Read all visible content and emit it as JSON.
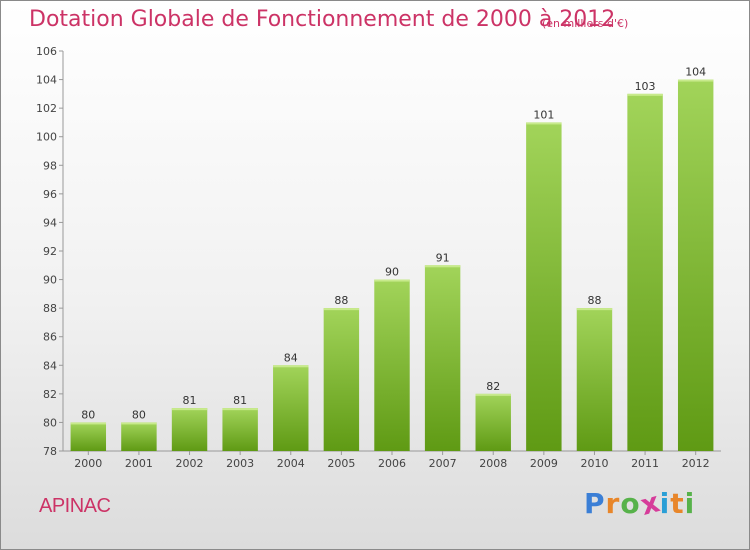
{
  "header": {
    "title": "Dotation Globale de Fonctionnement de 2000 à 2012",
    "unit": "(en milliers d'€)"
  },
  "footer": {
    "commune": "APINAC",
    "logo_letters": [
      "P",
      "r",
      "o",
      "x",
      "i",
      "t",
      "i"
    ]
  },
  "colors": {
    "title": "#cc3366",
    "bar_light": "#a2d45a",
    "bar_dark": "#5f9a14",
    "logo_letters": [
      "#3b7fd6",
      "#e8862a",
      "#57b24a",
      "#d63c9a",
      "#2a9fd6",
      "#e8862a",
      "#57b24a"
    ]
  },
  "chart_data": {
    "type": "bar",
    "categories": [
      "2000",
      "2001",
      "2002",
      "2003",
      "2004",
      "2005",
      "2006",
      "2007",
      "2008",
      "2009",
      "2010",
      "2011",
      "2012"
    ],
    "values": [
      80,
      80,
      81,
      81,
      84,
      88,
      90,
      91,
      82,
      101,
      88,
      103,
      104
    ],
    "ylim": [
      78,
      106
    ],
    "yticks": [
      78,
      80,
      82,
      84,
      86,
      88,
      90,
      92,
      94,
      96,
      98,
      100,
      102,
      104,
      106
    ],
    "grid": false,
    "data_labels": true
  }
}
